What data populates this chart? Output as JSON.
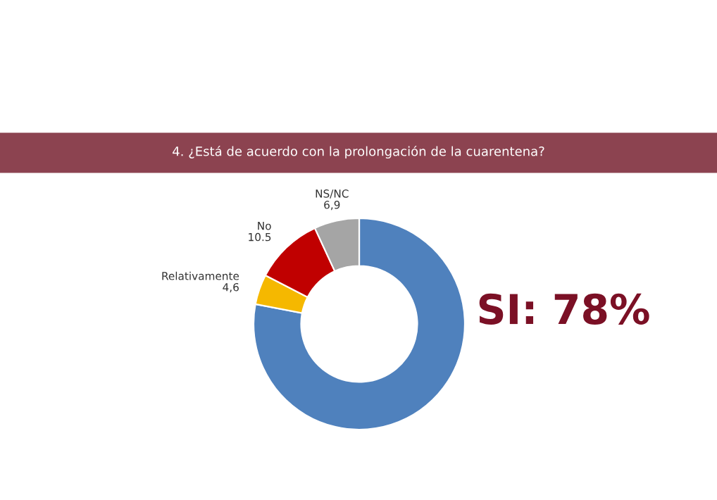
{
  "chart_data": {
    "type": "donut",
    "title": "4. ¿Está de acuerdo con la prolongación de la cuarentena?",
    "categories": [
      null,
      "Relativamente",
      "No",
      "NS/NC"
    ],
    "values": [
      78,
      4.6,
      10.5,
      6.9
    ],
    "value_labels": [
      null,
      "4,6",
      "10.5",
      "6,9"
    ],
    "colors": [
      "#4f81bd",
      "#f5b800",
      "#c00000",
      "#a5a5a5"
    ],
    "annotations": [
      "SI: 78%"
    ],
    "legend": false
  }
}
